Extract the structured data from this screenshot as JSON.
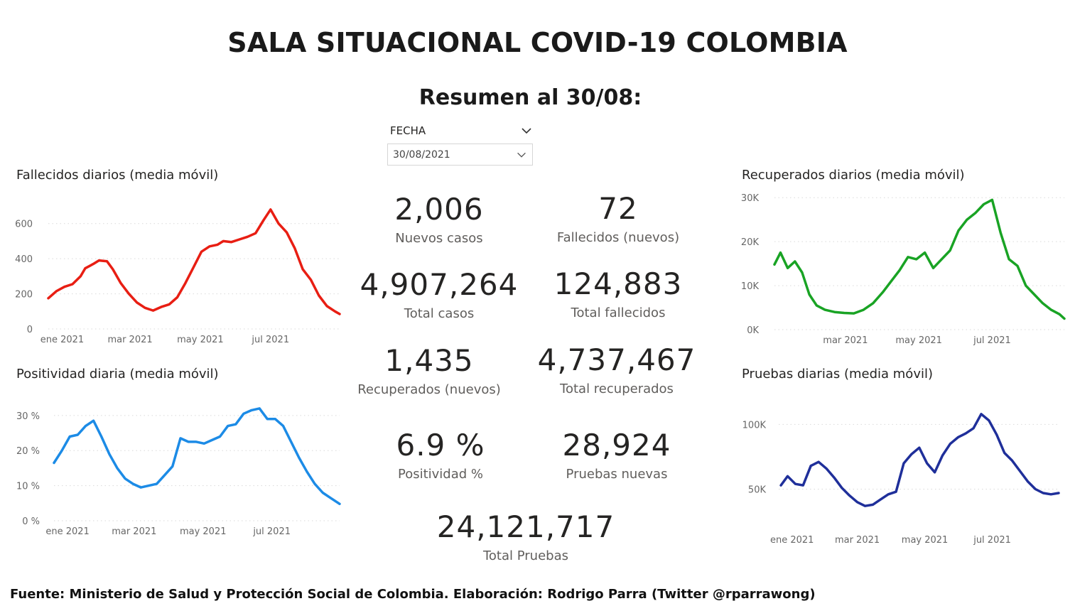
{
  "header": {
    "title": "SALA SITUACIONAL COVID-19 COLOMBIA",
    "summary": "Resumen al 30/08:"
  },
  "filter": {
    "label": "FECHA",
    "value": "30/08/2021"
  },
  "kpis": {
    "nuevos_casos": {
      "value": "2,006",
      "label": "Nuevos casos"
    },
    "fallecidos_nuevos": {
      "value": "72",
      "label": "Fallecidos (nuevos)"
    },
    "total_casos": {
      "value": "4,907,264",
      "label": "Total casos"
    },
    "total_fallecidos": {
      "value": "124,883",
      "label": "Total fallecidos"
    },
    "recuperados_nuevos": {
      "value": "1,435",
      "label": "Recuperados (nuevos)"
    },
    "total_recuperados": {
      "value": "4,737,467",
      "label": "Total recuperados"
    },
    "positividad": {
      "value": "6.9 %",
      "label": "Positividad %"
    },
    "pruebas_nuevas": {
      "value": "28,924",
      "label": "Pruebas nuevas"
    },
    "total_pruebas": {
      "value": "24,121,717",
      "label": "Total Pruebas"
    }
  },
  "footer": {
    "source": "Fuente: Ministerio de Salud y Protección Social de Colombia. Elaboración: Rodrigo Parra (Twitter @rparrawong)"
  },
  "chart_data": [
    {
      "id": "fallecidos",
      "type": "line",
      "title": "Fallecidos diarios (media móvil)",
      "color": "#e81e13",
      "xlim": [
        "2020-12-20",
        "2021-08-30"
      ],
      "x_ticks": [
        {
          "date": "2021-01-01",
          "label": "ene 2021"
        },
        {
          "date": "2021-03-01",
          "label": "mar 2021"
        },
        {
          "date": "2021-05-01",
          "label": "may 2021"
        },
        {
          "date": "2021-07-01",
          "label": "jul 2021"
        }
      ],
      "ylim": [
        0,
        700
      ],
      "y_ticks": [
        {
          "value": 0,
          "label": "0"
        },
        {
          "value": 200,
          "label": "200"
        },
        {
          "value": 400,
          "label": "400"
        },
        {
          "value": 600,
          "label": "600"
        }
      ],
      "grid": true,
      "points": [
        [
          "2020-12-20",
          175
        ],
        [
          "2020-12-27",
          215
        ],
        [
          "2021-01-03",
          240
        ],
        [
          "2021-01-10",
          255
        ],
        [
          "2021-01-17",
          300
        ],
        [
          "2021-01-21",
          345
        ],
        [
          "2021-01-28",
          370
        ],
        [
          "2021-02-02",
          390
        ],
        [
          "2021-02-09",
          385
        ],
        [
          "2021-02-14",
          340
        ],
        [
          "2021-02-21",
          260
        ],
        [
          "2021-02-28",
          200
        ],
        [
          "2021-03-07",
          150
        ],
        [
          "2021-03-14",
          120
        ],
        [
          "2021-03-21",
          105
        ],
        [
          "2021-03-28",
          125
        ],
        [
          "2021-04-04",
          140
        ],
        [
          "2021-04-11",
          180
        ],
        [
          "2021-04-18",
          260
        ],
        [
          "2021-04-25",
          350
        ],
        [
          "2021-05-02",
          440
        ],
        [
          "2021-05-09",
          470
        ],
        [
          "2021-05-16",
          480
        ],
        [
          "2021-05-21",
          500
        ],
        [
          "2021-05-28",
          495
        ],
        [
          "2021-06-04",
          510
        ],
        [
          "2021-06-11",
          525
        ],
        [
          "2021-06-18",
          545
        ],
        [
          "2021-06-25",
          620
        ],
        [
          "2021-07-01",
          680
        ],
        [
          "2021-07-08",
          600
        ],
        [
          "2021-07-15",
          550
        ],
        [
          "2021-07-22",
          460
        ],
        [
          "2021-07-29",
          340
        ],
        [
          "2021-08-05",
          280
        ],
        [
          "2021-08-12",
          190
        ],
        [
          "2021-08-19",
          130
        ],
        [
          "2021-08-26",
          100
        ],
        [
          "2021-08-30",
          85
        ]
      ]
    },
    {
      "id": "positividad",
      "type": "line",
      "title": "Positividad diaria (media móvil)",
      "color": "#1c8be6",
      "xlim": [
        "2020-12-20",
        "2021-08-30"
      ],
      "x_ticks": [
        {
          "date": "2021-01-01",
          "label": "ene 2021"
        },
        {
          "date": "2021-03-01",
          "label": "mar 2021"
        },
        {
          "date": "2021-05-01",
          "label": "may 2021"
        },
        {
          "date": "2021-07-01",
          "label": "jul 2021"
        }
      ],
      "ylim": [
        0,
        33
      ],
      "y_ticks": [
        {
          "value": 0,
          "label": "0 %"
        },
        {
          "value": 10,
          "label": "10 %"
        },
        {
          "value": 20,
          "label": "20 %"
        },
        {
          "value": 30,
          "label": "30 %"
        }
      ],
      "grid": true,
      "points": [
        [
          "2020-12-20",
          16.5
        ],
        [
          "2020-12-27",
          20
        ],
        [
          "2021-01-03",
          24
        ],
        [
          "2021-01-10",
          24.5
        ],
        [
          "2021-01-17",
          27
        ],
        [
          "2021-01-24",
          28.5
        ],
        [
          "2021-01-31",
          24
        ],
        [
          "2021-02-07",
          19
        ],
        [
          "2021-02-14",
          15
        ],
        [
          "2021-02-21",
          12
        ],
        [
          "2021-02-28",
          10.5
        ],
        [
          "2021-03-07",
          9.5
        ],
        [
          "2021-03-14",
          10
        ],
        [
          "2021-03-21",
          10.5
        ],
        [
          "2021-03-28",
          13
        ],
        [
          "2021-04-04",
          15.5
        ],
        [
          "2021-04-11",
          23.5
        ],
        [
          "2021-04-18",
          22.5
        ],
        [
          "2021-04-25",
          22.5
        ],
        [
          "2021-05-02",
          22
        ],
        [
          "2021-05-09",
          23
        ],
        [
          "2021-05-16",
          24
        ],
        [
          "2021-05-23",
          27
        ],
        [
          "2021-05-30",
          27.5
        ],
        [
          "2021-06-06",
          30.5
        ],
        [
          "2021-06-13",
          31.5
        ],
        [
          "2021-06-20",
          32
        ],
        [
          "2021-06-27",
          29
        ],
        [
          "2021-07-04",
          29
        ],
        [
          "2021-07-11",
          27
        ],
        [
          "2021-07-18",
          22.5
        ],
        [
          "2021-07-25",
          18
        ],
        [
          "2021-08-01",
          14
        ],
        [
          "2021-08-08",
          10.5
        ],
        [
          "2021-08-15",
          8
        ],
        [
          "2021-08-22",
          6.5
        ],
        [
          "2021-08-30",
          4.8
        ]
      ]
    },
    {
      "id": "recuperados",
      "type": "line",
      "title": "Recuperados diarios (media móvil)",
      "color": "#19a324",
      "xlim": [
        "2021-01-01",
        "2021-08-30"
      ],
      "x_ticks": [
        {
          "date": "2021-03-01",
          "label": "mar 2021"
        },
        {
          "date": "2021-05-01",
          "label": "may 2021"
        },
        {
          "date": "2021-07-01",
          "label": "jul 2021"
        }
      ],
      "ylim": [
        0,
        31000
      ],
      "y_ticks": [
        {
          "value": 0,
          "label": "0K"
        },
        {
          "value": 10000,
          "label": "10K"
        },
        {
          "value": 20000,
          "label": "20K"
        },
        {
          "value": 30000,
          "label": "30K"
        }
      ],
      "grid": true,
      "points": [
        [
          "2021-01-01",
          14800
        ],
        [
          "2021-01-06",
          17500
        ],
        [
          "2021-01-12",
          14000
        ],
        [
          "2021-01-18",
          15500
        ],
        [
          "2021-01-24",
          13000
        ],
        [
          "2021-01-30",
          8000
        ],
        [
          "2021-02-05",
          5500
        ],
        [
          "2021-02-12",
          4500
        ],
        [
          "2021-02-20",
          4000
        ],
        [
          "2021-02-28",
          3800
        ],
        [
          "2021-03-08",
          3700
        ],
        [
          "2021-03-16",
          4500
        ],
        [
          "2021-03-24",
          6000
        ],
        [
          "2021-04-01",
          8500
        ],
        [
          "2021-04-08",
          11000
        ],
        [
          "2021-04-15",
          13500
        ],
        [
          "2021-04-22",
          16500
        ],
        [
          "2021-04-29",
          16000
        ],
        [
          "2021-05-06",
          17500
        ],
        [
          "2021-05-13",
          14000
        ],
        [
          "2021-05-20",
          16000
        ],
        [
          "2021-05-27",
          18000
        ],
        [
          "2021-06-03",
          22500
        ],
        [
          "2021-06-10",
          25000
        ],
        [
          "2021-06-17",
          26500
        ],
        [
          "2021-06-24",
          28500
        ],
        [
          "2021-07-01",
          29500
        ],
        [
          "2021-07-08",
          22000
        ],
        [
          "2021-07-15",
          16000
        ],
        [
          "2021-07-22",
          14500
        ],
        [
          "2021-07-29",
          10000
        ],
        [
          "2021-08-05",
          8000
        ],
        [
          "2021-08-12",
          6000
        ],
        [
          "2021-08-19",
          4500
        ],
        [
          "2021-08-26",
          3500
        ],
        [
          "2021-08-30",
          2500
        ]
      ]
    },
    {
      "id": "pruebas",
      "type": "line",
      "title": "Pruebas diarias (media móvil)",
      "color": "#1f2f9a",
      "xlim": [
        "2020-12-20",
        "2021-08-30"
      ],
      "x_ticks": [
        {
          "date": "2021-01-01",
          "label": "ene 2021"
        },
        {
          "date": "2021-03-01",
          "label": "mar 2021"
        },
        {
          "date": "2021-05-01",
          "label": "may 2021"
        },
        {
          "date": "2021-07-01",
          "label": "jul 2021"
        }
      ],
      "ylim": [
        30000,
        115000
      ],
      "y_ticks": [
        {
          "value": 50000,
          "label": "50K"
        },
        {
          "value": 100000,
          "label": "100K"
        }
      ],
      "grid": true,
      "points": [
        [
          "2020-12-22",
          53000
        ],
        [
          "2020-12-28",
          60000
        ],
        [
          "2021-01-04",
          54000
        ],
        [
          "2021-01-11",
          53000
        ],
        [
          "2021-01-18",
          68000
        ],
        [
          "2021-01-25",
          71000
        ],
        [
          "2021-02-01",
          66000
        ],
        [
          "2021-02-08",
          59000
        ],
        [
          "2021-02-15",
          51000
        ],
        [
          "2021-02-22",
          45000
        ],
        [
          "2021-03-01",
          40000
        ],
        [
          "2021-03-08",
          37000
        ],
        [
          "2021-03-15",
          38000
        ],
        [
          "2021-03-22",
          42000
        ],
        [
          "2021-03-29",
          46000
        ],
        [
          "2021-04-05",
          48000
        ],
        [
          "2021-04-12",
          70000
        ],
        [
          "2021-04-19",
          77000
        ],
        [
          "2021-04-26",
          82000
        ],
        [
          "2021-05-03",
          70000
        ],
        [
          "2021-05-10",
          63000
        ],
        [
          "2021-05-17",
          76000
        ],
        [
          "2021-05-24",
          85000
        ],
        [
          "2021-05-31",
          90000
        ],
        [
          "2021-06-07",
          93000
        ],
        [
          "2021-06-14",
          97000
        ],
        [
          "2021-06-21",
          108000
        ],
        [
          "2021-06-28",
          103000
        ],
        [
          "2021-07-05",
          92000
        ],
        [
          "2021-07-12",
          78000
        ],
        [
          "2021-07-19",
          72000
        ],
        [
          "2021-07-26",
          64000
        ],
        [
          "2021-08-02",
          56000
        ],
        [
          "2021-08-09",
          50000
        ],
        [
          "2021-08-16",
          47000
        ],
        [
          "2021-08-23",
          46000
        ],
        [
          "2021-08-30",
          47000
        ]
      ]
    }
  ]
}
